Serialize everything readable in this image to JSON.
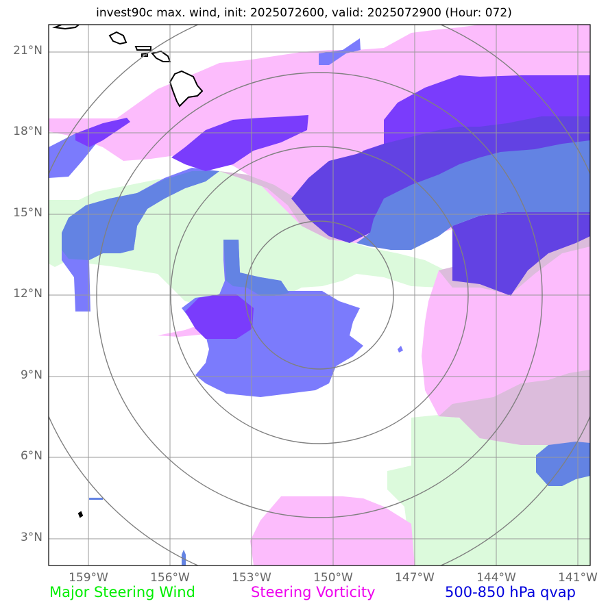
{
  "title": "invest90c max. wind, init: 2025072600, valid: 2025072900 (Hour: 072)",
  "map": {
    "lat_labels": [
      "21°N",
      "18°N",
      "15°N",
      "12°N",
      "9°N",
      "6°N",
      "3°N"
    ],
    "lon_labels": [
      "159°W",
      "156°W",
      "153°W",
      "150°W",
      "147°W",
      "144°W",
      "141°W"
    ],
    "range_rings": 4,
    "center": {
      "lat": 12,
      "lon": "150.5°W"
    },
    "layers": [
      {
        "name": "Major Steering Wind",
        "color": "#dcfadc"
      },
      {
        "name": "Steering Vorticity",
        "color": "#fcbcfc"
      },
      {
        "name": "500-850 hPa qvap",
        "color": "#6b6bfc"
      }
    ]
  },
  "legend": {
    "steering_wind": "Major Steering Wind",
    "steering_wind_color": "#00ee00",
    "vorticity": "Steering Vorticity",
    "vorticity_color": "#ee00ee",
    "qvap": "500-850 hPa qvap",
    "qvap_color": "#0000dd"
  }
}
